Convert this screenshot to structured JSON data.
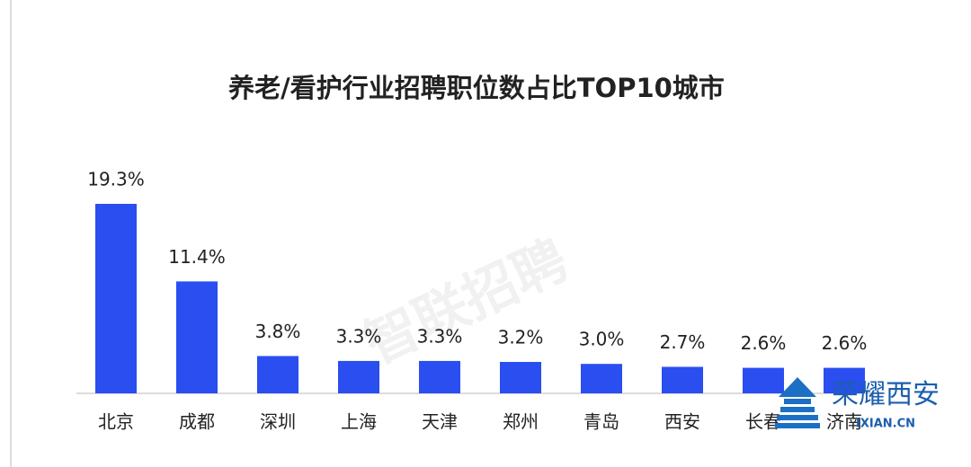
{
  "chart_data": {
    "type": "bar",
    "title": "养老/看护行业招聘职位数占比TOP10城市",
    "categories": [
      "北京",
      "成都",
      "深圳",
      "上海",
      "天津",
      "郑州",
      "青岛",
      "西安",
      "长春",
      "济南"
    ],
    "values": [
      19.3,
      11.4,
      3.8,
      3.3,
      3.3,
      3.2,
      3.0,
      2.7,
      2.6,
      2.6
    ],
    "value_labels": [
      "19.3%",
      "11.4%",
      "3.8%",
      "3.3%",
      "3.3%",
      "3.2%",
      "3.0%",
      "2.7%",
      "2.6%",
      "2.6%"
    ],
    "color": "#2a4ef0",
    "watermark": "智联招聘",
    "logo": {
      "title": "荣耀西安",
      "site": "IXIAN.CN"
    }
  }
}
